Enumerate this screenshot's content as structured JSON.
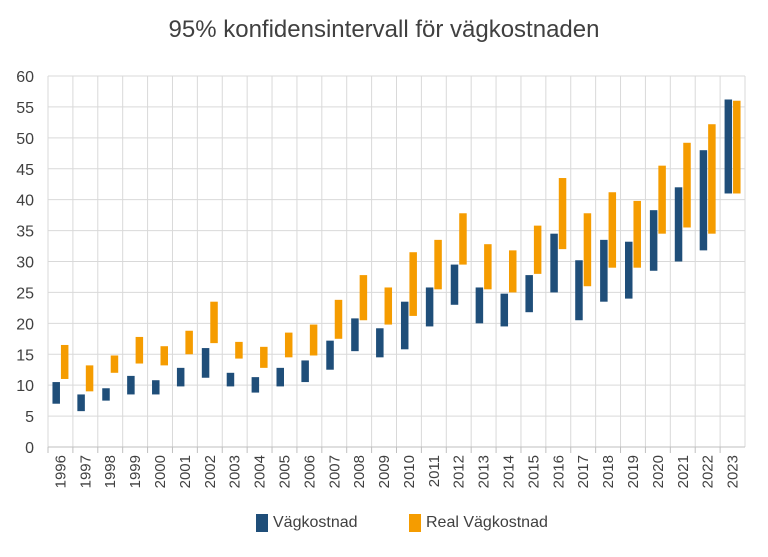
{
  "chart_data": {
    "type": "bar",
    "title": "95% konfidensintervall för vägkostnaden",
    "xlabel": "",
    "ylabel": "",
    "ylim": [
      0,
      60
    ],
    "yticks": [
      "0",
      "5",
      "10",
      "15",
      "20",
      "25",
      "30",
      "35",
      "40",
      "45",
      "50",
      "55",
      "60"
    ],
    "grid": true,
    "legend_position": "bottom",
    "categories": [
      "1996",
      "1997",
      "1998",
      "1999",
      "2000",
      "2001",
      "2002",
      "2003",
      "2004",
      "2005",
      "2006",
      "2007",
      "2008",
      "2009",
      "2010",
      "2011",
      "2012",
      "2013",
      "2014",
      "2015",
      "2016",
      "2017",
      "2018",
      "2019",
      "2020",
      "2021",
      "2022",
      "2023"
    ],
    "series": [
      {
        "name": "Vägkostnad",
        "color": "#1F4E79",
        "low": [
          7,
          5.8,
          7.5,
          8.5,
          8.5,
          9.8,
          11.2,
          9.8,
          8.8,
          9.8,
          10.5,
          12.5,
          15.5,
          14.5,
          15.8,
          19.5,
          23,
          20,
          19.5,
          21.8,
          25,
          20.5,
          23.5,
          24,
          28.5,
          30,
          31.8,
          41
        ],
        "high": [
          10.5,
          8.5,
          9.5,
          11.5,
          10.8,
          12.8,
          16,
          12,
          11.3,
          12.8,
          14,
          17.2,
          20.8,
          19.2,
          23.5,
          25.8,
          29.5,
          25.8,
          24.8,
          27.8,
          34.5,
          30.2,
          33.5,
          33.2,
          38.3,
          42,
          48,
          56.2
        ]
      },
      {
        "name": "Real Vägkostnad",
        "color": "#F59C00",
        "low": [
          11,
          9,
          12,
          13.5,
          13.2,
          15,
          16.8,
          14.3,
          12.8,
          14.5,
          14.8,
          17.5,
          20.5,
          19.8,
          21.2,
          25.5,
          29.5,
          25.5,
          25,
          28,
          32,
          26,
          29,
          29,
          34.5,
          35.5,
          34.5,
          41
        ],
        "high": [
          16.5,
          13.2,
          14.8,
          17.8,
          16.3,
          18.8,
          23.5,
          17,
          16.2,
          18.5,
          19.8,
          23.8,
          27.8,
          25.8,
          31.5,
          33.5,
          37.8,
          32.8,
          31.8,
          35.8,
          43.5,
          37.8,
          41.2,
          39.8,
          45.5,
          49.2,
          52.2,
          56
        ]
      }
    ]
  }
}
